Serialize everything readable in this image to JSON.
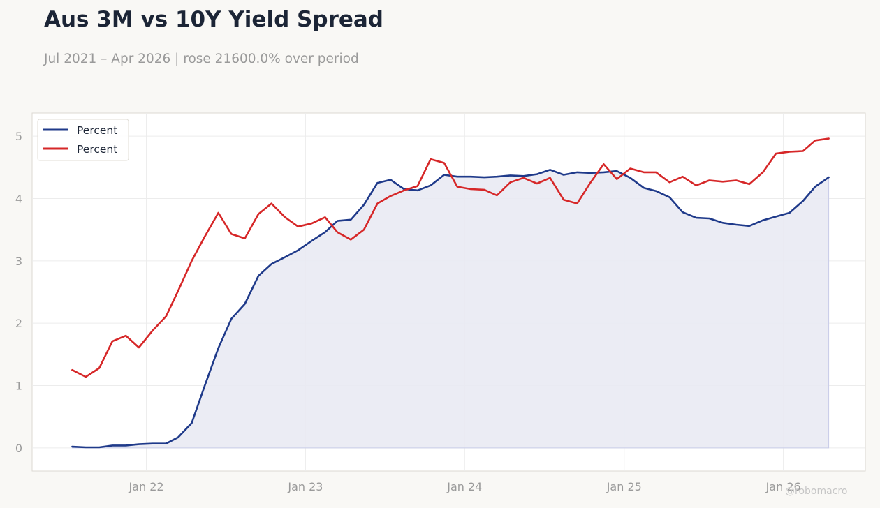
{
  "header": {
    "title": "Aus 3M vs 10Y Yield Spread",
    "subtitle": "Jul 2021 – Apr 2026 | rose 21600.0% over period"
  },
  "watermark": "@robomacro",
  "colors": {
    "series_3m": "#1f3a8a",
    "series_10y": "#d62728",
    "area_fill": "#e9eaf3",
    "grid": "#ececec",
    "frame": "#dcd9d2"
  },
  "chart_data": {
    "type": "line",
    "x": [
      "2021-07",
      "2021-08",
      "2021-09",
      "2021-10",
      "2021-11",
      "2021-12",
      "2022-01",
      "2022-02",
      "2022-03",
      "2022-04",
      "2022-05",
      "2022-06",
      "2022-07",
      "2022-08",
      "2022-09",
      "2022-10",
      "2022-11",
      "2022-12",
      "2023-01",
      "2023-02",
      "2023-03",
      "2023-04",
      "2023-05",
      "2023-06",
      "2023-07",
      "2023-08",
      "2023-09",
      "2023-10",
      "2023-11",
      "2023-12",
      "2024-01",
      "2024-02",
      "2024-03",
      "2024-04",
      "2024-05",
      "2024-06",
      "2024-07",
      "2024-08",
      "2024-09",
      "2024-10",
      "2024-11",
      "2024-12",
      "2025-01",
      "2025-02",
      "2025-03",
      "2025-04",
      "2025-05",
      "2025-06",
      "2025-07",
      "2025-08",
      "2025-09",
      "2025-10",
      "2025-11",
      "2025-12",
      "2026-01",
      "2026-02",
      "2026-03",
      "2026-04"
    ],
    "series": [
      {
        "name": "Percent",
        "color": "#1f3a8a",
        "fill": true,
        "values": [
          0.02,
          0.01,
          0.01,
          0.04,
          0.04,
          0.06,
          0.07,
          0.07,
          0.17,
          0.4,
          1.0,
          1.6,
          2.07,
          2.31,
          2.76,
          2.95,
          3.06,
          3.17,
          3.32,
          3.46,
          3.64,
          3.66,
          3.9,
          4.25,
          4.3,
          4.15,
          4.13,
          4.21,
          4.38,
          4.35,
          4.35,
          4.34,
          4.35,
          4.37,
          4.36,
          4.39,
          4.46,
          4.38,
          4.42,
          4.41,
          4.42,
          4.44,
          4.33,
          4.17,
          4.12,
          4.02,
          3.78,
          3.69,
          3.68,
          3.61,
          3.58,
          3.56,
          3.65,
          3.71,
          3.77,
          3.96,
          4.19,
          4.34
        ]
      },
      {
        "name": "Percent",
        "color": "#d62728",
        "fill": false,
        "values": [
          1.25,
          1.14,
          1.28,
          1.71,
          1.8,
          1.61,
          1.88,
          2.11,
          2.52,
          3.0,
          3.39,
          3.77,
          3.43,
          3.36,
          3.75,
          3.92,
          3.7,
          3.55,
          3.6,
          3.7,
          3.46,
          3.34,
          3.5,
          3.92,
          4.04,
          4.13,
          4.2,
          4.63,
          4.57,
          4.19,
          4.15,
          4.14,
          4.05,
          4.26,
          4.33,
          4.24,
          4.33,
          3.98,
          3.92,
          4.25,
          4.55,
          4.31,
          4.48,
          4.42,
          4.42,
          4.26,
          4.35,
          4.21,
          4.29,
          4.27,
          4.29,
          4.23,
          4.42,
          4.72,
          4.75,
          4.76,
          4.93,
          4.96
        ]
      }
    ],
    "xlim": [
      "2021-04-14",
      "2026-07-08"
    ],
    "ylim": [
      -0.37,
      5.37
    ],
    "x_ticks": [
      {
        "date": "2022-01-01",
        "label": "Jan 22"
      },
      {
        "date": "2023-01-01",
        "label": "Jan 23"
      },
      {
        "date": "2024-01-01",
        "label": "Jan 24"
      },
      {
        "date": "2025-01-01",
        "label": "Jan 25"
      },
      {
        "date": "2026-01-01",
        "label": "Jan 26"
      }
    ],
    "y_ticks": [
      0,
      1,
      2,
      3,
      4,
      5
    ],
    "grid": true,
    "legend_position": "top-left"
  }
}
